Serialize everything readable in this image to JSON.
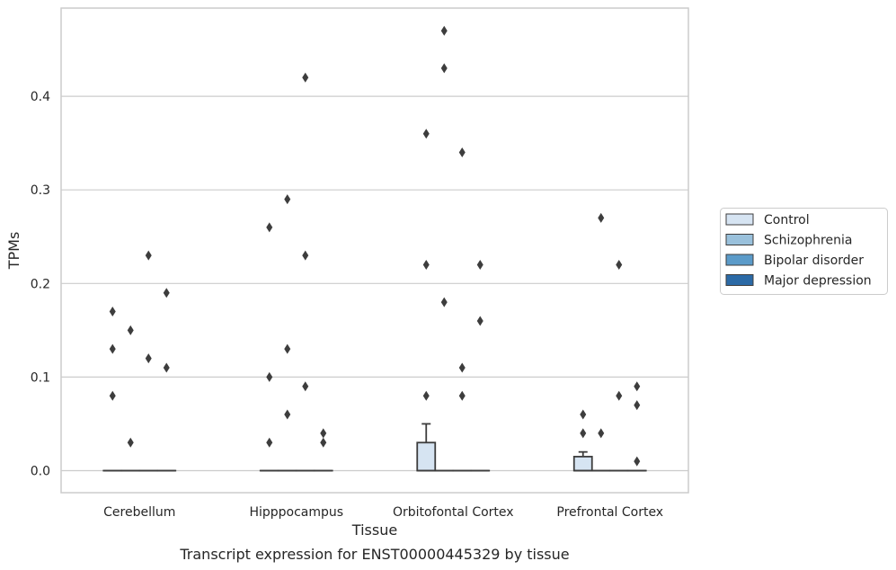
{
  "chart_data": {
    "type": "box",
    "xlabel": "Tissue",
    "ylabel": "TPMs",
    "caption": "Transcript expression for ENST00000445329 by tissue",
    "ylim": [
      -0.023,
      0.492
    ],
    "yticks": [
      0.0,
      0.1,
      0.2,
      0.3,
      0.4
    ],
    "ytick_labels": [
      "0.0",
      "0.1",
      "0.2",
      "0.3",
      "0.4"
    ],
    "grid": "horizontal",
    "legend_position": "right",
    "categories": [
      "Cerebellum",
      "Hipppocampus",
      "Orbitofontal Cortex",
      "Prefrontal Cortex"
    ],
    "series": [
      {
        "name": "Control",
        "color": "#d6e4f2",
        "boxes": [
          {
            "q1": 0,
            "median": 0,
            "q3": 0,
            "whisker_low": 0,
            "whisker_high": 0,
            "outliers": [
              0.17,
              0.13,
              0.08
            ]
          },
          {
            "q1": 0,
            "median": 0,
            "q3": 0,
            "whisker_low": 0,
            "whisker_high": 0,
            "outliers": [
              0.26,
              0.1,
              0.03
            ]
          },
          {
            "q1": 0,
            "median": 0,
            "q3": 0.03,
            "whisker_low": 0,
            "whisker_high": 0.05,
            "outliers": [
              0.36,
              0.22,
              0.08
            ]
          },
          {
            "q1": 0,
            "median": 0,
            "q3": 0.015,
            "whisker_low": 0,
            "whisker_high": 0.02,
            "outliers": [
              0.06,
              0.04
            ]
          }
        ]
      },
      {
        "name": "Schizophrenia",
        "color": "#9ac1dc",
        "boxes": [
          {
            "q1": 0,
            "median": 0,
            "q3": 0,
            "whisker_low": 0,
            "whisker_high": 0,
            "outliers": [
              0.15,
              0.03
            ]
          },
          {
            "q1": 0,
            "median": 0,
            "q3": 0,
            "whisker_low": 0,
            "whisker_high": 0,
            "outliers": [
              0.29,
              0.13,
              0.06
            ]
          },
          {
            "q1": 0,
            "median": 0,
            "q3": 0,
            "whisker_low": 0,
            "whisker_high": 0,
            "outliers": [
              0.47,
              0.43,
              0.18
            ]
          },
          {
            "q1": 0,
            "median": 0,
            "q3": 0,
            "whisker_low": 0,
            "whisker_high": 0,
            "outliers": [
              0.27,
              0.04
            ]
          }
        ]
      },
      {
        "name": "Bipolar disorder",
        "color": "#5b9bc9",
        "boxes": [
          {
            "q1": 0,
            "median": 0,
            "q3": 0,
            "whisker_low": 0,
            "whisker_high": 0,
            "outliers": [
              0.23,
              0.12
            ]
          },
          {
            "q1": 0,
            "median": 0,
            "q3": 0,
            "whisker_low": 0,
            "whisker_high": 0,
            "outliers": [
              0.42,
              0.23,
              0.09
            ]
          },
          {
            "q1": 0,
            "median": 0,
            "q3": 0,
            "whisker_low": 0,
            "whisker_high": 0,
            "outliers": [
              0.34,
              0.11,
              0.08
            ]
          },
          {
            "q1": 0,
            "median": 0,
            "q3": 0,
            "whisker_low": 0,
            "whisker_high": 0,
            "outliers": [
              0.22,
              0.08
            ]
          }
        ]
      },
      {
        "name": "Major depression",
        "color": "#2b6aa6",
        "boxes": [
          {
            "q1": 0,
            "median": 0,
            "q3": 0,
            "whisker_low": 0,
            "whisker_high": 0,
            "outliers": [
              0.19,
              0.11
            ]
          },
          {
            "q1": 0,
            "median": 0,
            "q3": 0,
            "whisker_low": 0,
            "whisker_high": 0,
            "outliers": [
              0.04,
              0.03
            ]
          },
          {
            "q1": 0,
            "median": 0,
            "q3": 0,
            "whisker_low": 0,
            "whisker_high": 0,
            "outliers": [
              0.22,
              0.16
            ]
          },
          {
            "q1": 0,
            "median": 0,
            "q3": 0,
            "whisker_low": 0,
            "whisker_high": 0,
            "outliers": [
              0.09,
              0.07,
              0.01
            ]
          }
        ]
      }
    ]
  }
}
